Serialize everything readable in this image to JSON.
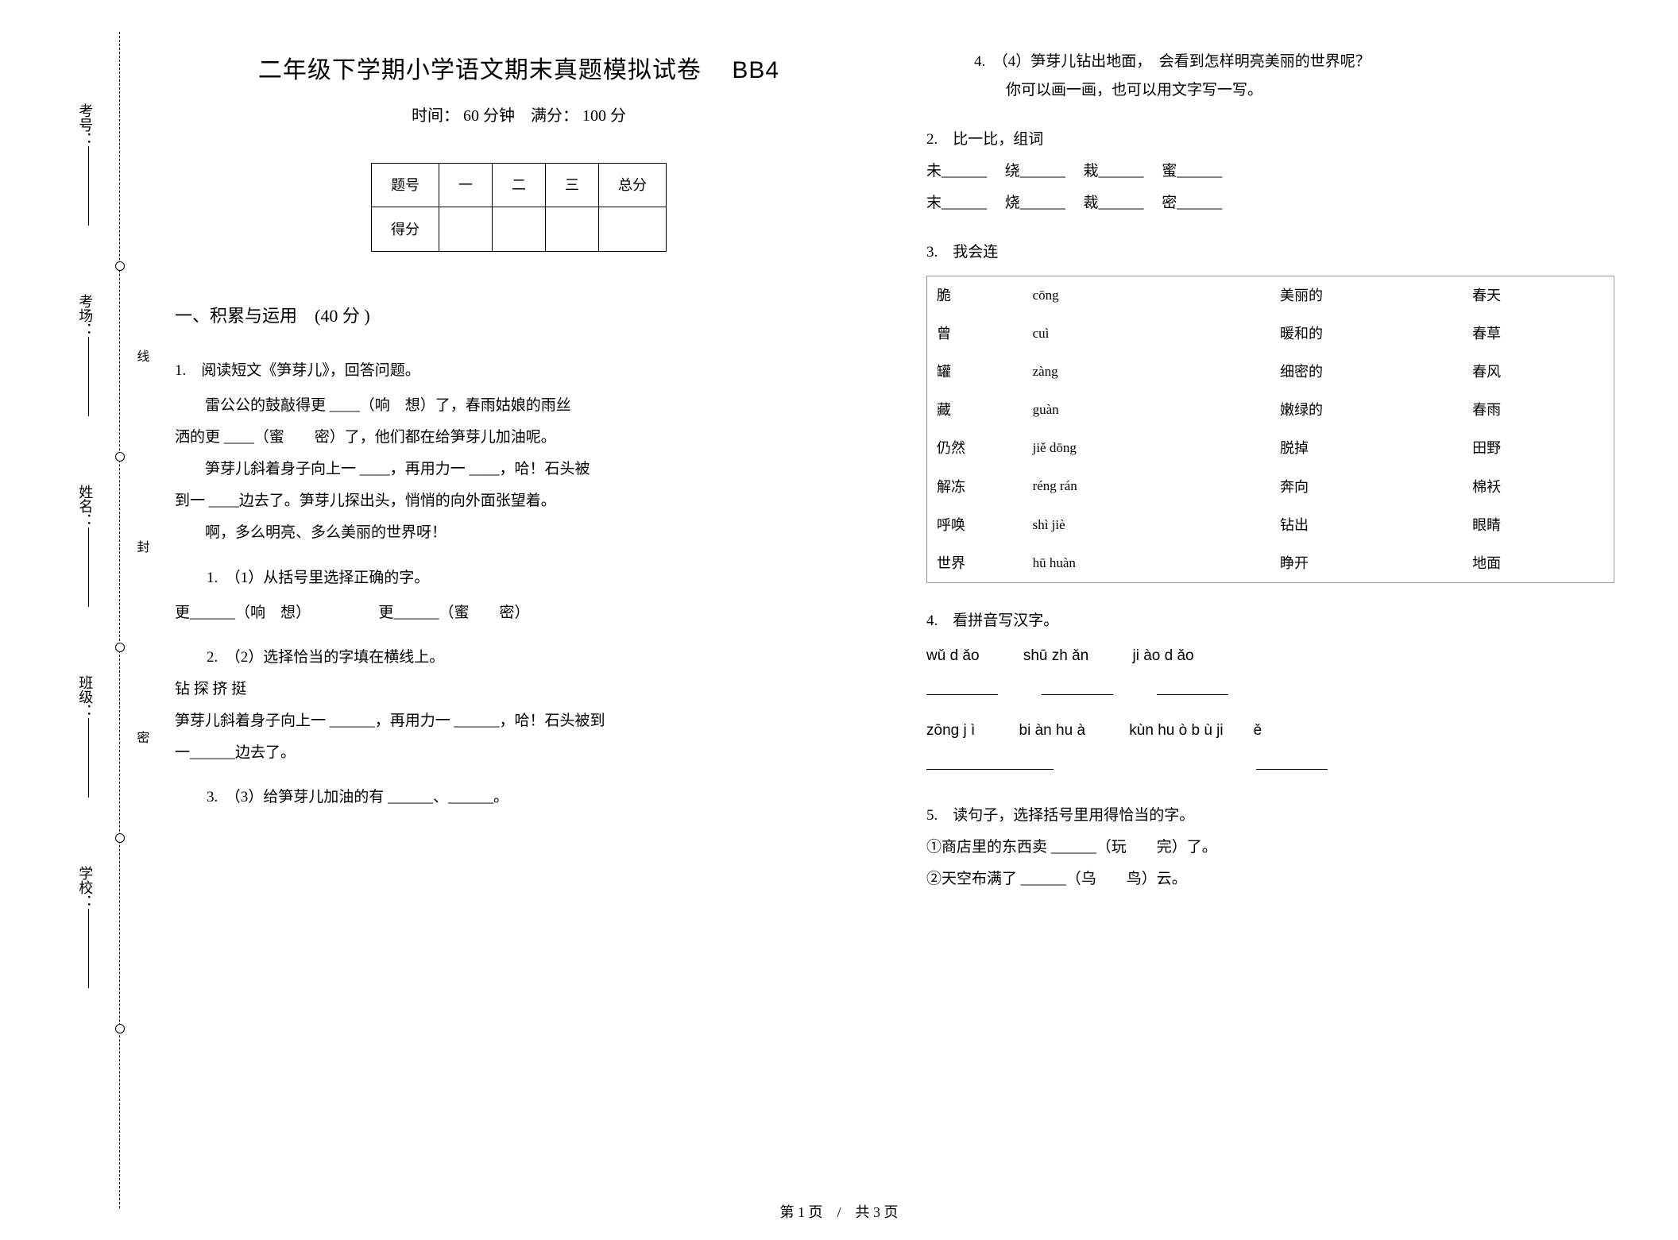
{
  "binding": {
    "labels": [
      "考号：",
      "考场：",
      "姓名：",
      "班级：",
      "学校："
    ],
    "marks": [
      "线",
      "封",
      "密"
    ]
  },
  "header": {
    "title_main": "二年级下学期小学语文期末真题模拟试卷",
    "title_code": "BB4",
    "subtitle": "时间： 60 分钟　满分： 100 分"
  },
  "score_table": {
    "headers": [
      "题号",
      "一",
      "二",
      "三",
      "总分"
    ],
    "row_label": "得分"
  },
  "section1": {
    "heading": "一、积累与运用　(40 分 )",
    "q1": {
      "stem": "1.　阅读短文《笋芽儿》，回答问题。",
      "passage": [
        "雷公公的鼓敲得更 ____（响　想）了，春雨姑娘的雨丝",
        "洒的更 ____（蜜　　密）了，他们都在给笋芽儿加油呢。",
        "笋芽儿斜着身子向上一 ____，再用力一 ____，哈！石头被",
        "到一 ____边去了。笋芽儿探出头，悄悄的向外面张望着。",
        "啊，多么明亮、多么美丽的世界呀！"
      ],
      "s1": "1.　（1）从括号里选择正确的字。",
      "s1_line": "更______（响　想）　　　　　更______（蜜　　密）",
      "s2": "2.　（2）选择恰当的字填在横线上。",
      "s2_chars": "钻  探  挤  挺",
      "s2_line1": "笋芽儿斜着身子向上一 ______，再用力一 ______，哈！石头被到",
      "s2_line2": "一______边去了。",
      "s3": "3.　（3）给笋芽儿加油的有 ______、______。",
      "s4a": "4.　（4）笋芽儿钻出地面，　会看到怎样明亮美丽的世界呢？",
      "s4b": "你可以画一画，也可以用文字写一写。"
    },
    "q2": {
      "stem": "2.　比一比，组词",
      "row1": [
        "未______",
        "绕______",
        "栽______",
        "蜜______"
      ],
      "row2": [
        "末______",
        "烧______",
        "裁______",
        "密______"
      ]
    },
    "q3": {
      "stem": "3.　我会连",
      "left": [
        [
          "脆",
          "cōng"
        ],
        [
          "曾",
          "cuì"
        ],
        [
          "罐",
          "zàng"
        ],
        [
          "藏",
          "guàn"
        ],
        [
          "仍然",
          "jiě  dōng"
        ],
        [
          "解冻",
          "réng  rán"
        ],
        [
          "呼唤",
          "shì  jiè"
        ],
        [
          "世界",
          "hū  huàn"
        ]
      ],
      "right": [
        [
          "美丽的",
          "春天"
        ],
        [
          "暖和的",
          "春草"
        ],
        [
          "细密的",
          "春风"
        ],
        [
          "嫩绿的",
          "春雨"
        ],
        [
          "脱掉",
          "田野"
        ],
        [
          "奔向",
          "棉袄"
        ],
        [
          "钻出",
          "眼睛"
        ],
        [
          "睁开",
          "地面"
        ]
      ]
    },
    "q4": {
      "stem": "4.　看拼音写汉字。",
      "row1": [
        "wǔ d ǎo",
        "shū zh ǎn",
        "ji ào d ǎo"
      ],
      "row2": [
        "zōng j ì",
        "bi àn hu à",
        "kùn hu ò b ù ji　　ě"
      ]
    },
    "q5": {
      "stem": "5.　读句子，选择括号里用得恰当的字。",
      "l1": "①商店里的东西卖 ______（玩　　完）了。",
      "l2": "②天空布满了 ______（乌　　鸟）云。"
    }
  },
  "footer": "第 1 页　/　共 3 页"
}
